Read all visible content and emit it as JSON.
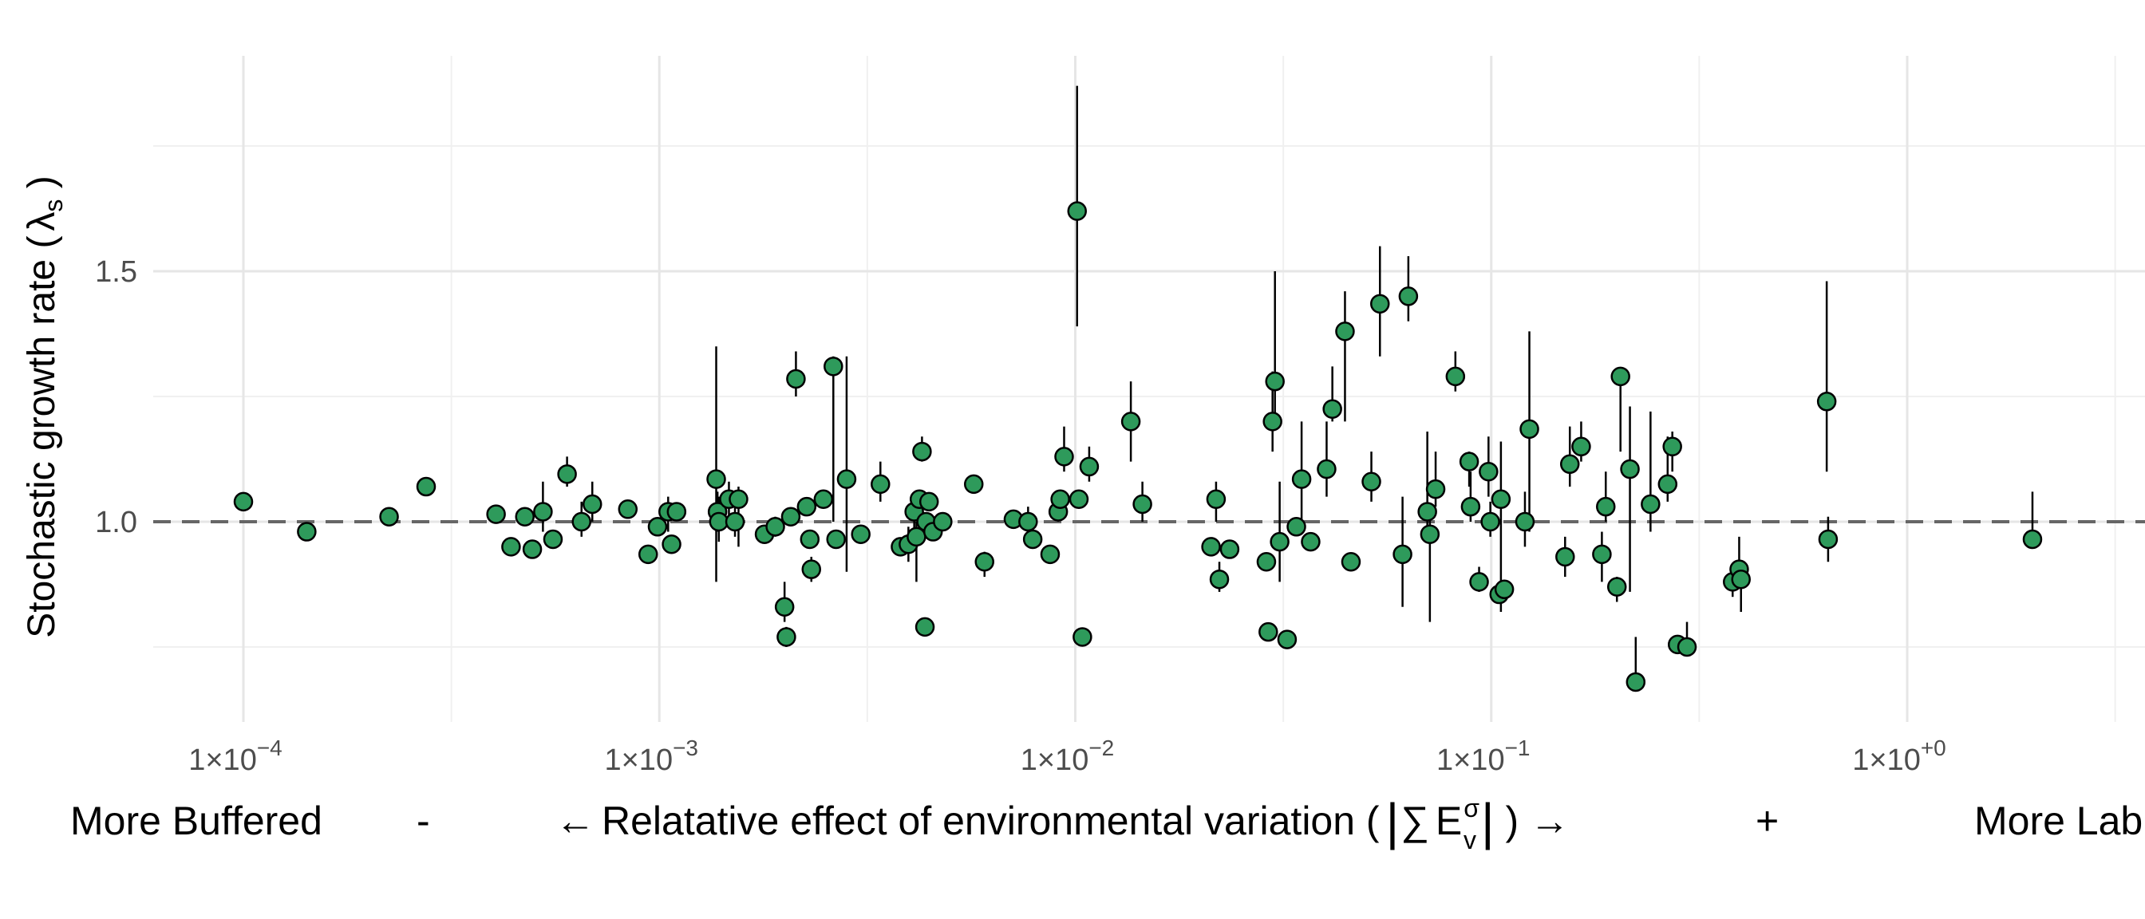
{
  "chart_data": {
    "type": "scatter",
    "x_scale": "log10",
    "xlim": [
      5e-05,
      4
    ],
    "ylim": [
      0.65,
      1.9
    ],
    "x_ticks": [
      {
        "value": 0.0001,
        "label": "1×10",
        "exp": "−4"
      },
      {
        "value": 0.001,
        "label": "1×10",
        "exp": "−3"
      },
      {
        "value": 0.01,
        "label": "1×10",
        "exp": "−2"
      },
      {
        "value": 0.1,
        "label": "1×10",
        "exp": "−1"
      },
      {
        "value": 1,
        "label": "1×10",
        "exp": "+0"
      }
    ],
    "y_ticks": [
      {
        "value": 1.0,
        "label": "1.0"
      },
      {
        "value": 1.5,
        "label": "1.5"
      }
    ],
    "y_minor": [
      0.75,
      1.25,
      1.75
    ],
    "reference_line": 1.0,
    "grid": true,
    "marker_color": "#2e9a5b",
    "ylabel": "Stochastic growth rate (",
    "ylabel_symbol": "λ",
    "ylabel_sub": "s",
    "ylabel_close": " )",
    "x_caption": {
      "left": "More Buffered",
      "minus": "-",
      "arrow_left": "←",
      "middle": "Relatative effect of environmental variation (",
      "bar_left": "|",
      "sum": "∑",
      "E": "E",
      "E_sup": "σ",
      "E_sub": "v",
      "bar_right": "|",
      "close": " )",
      "arrow_right": "→",
      "plus": "+",
      "right": "More Labile"
    },
    "points": [
      {
        "x": 0.0001,
        "y": 1.04
      },
      {
        "x": 0.000142,
        "y": 0.98
      },
      {
        "x": 0.000224,
        "y": 1.01
      },
      {
        "x": 0.000275,
        "y": 1.07
      },
      {
        "x": 0.000405,
        "y": 1.015
      },
      {
        "x": 0.00044,
        "y": 0.95
      },
      {
        "x": 0.000475,
        "y": 1.01
      },
      {
        "x": 0.000495,
        "y": 0.945
      },
      {
        "x": 0.000525,
        "y": 1.02,
        "lo": 0.98,
        "hi": 1.08
      },
      {
        "x": 0.000555,
        "y": 0.965
      },
      {
        "x": 0.0006,
        "y": 1.095,
        "lo": 1.07,
        "hi": 1.13
      },
      {
        "x": 0.00065,
        "y": 1.0,
        "lo": 0.97,
        "hi": 1.04
      },
      {
        "x": 0.00069,
        "y": 1.035,
        "lo": 1.0,
        "hi": 1.08
      },
      {
        "x": 0.00084,
        "y": 1.025
      },
      {
        "x": 0.00094,
        "y": 0.935
      },
      {
        "x": 0.00099,
        "y": 0.99
      },
      {
        "x": 0.00105,
        "y": 1.02,
        "lo": 0.98,
        "hi": 1.05
      },
      {
        "x": 0.00107,
        "y": 0.955
      },
      {
        "x": 0.0011,
        "y": 1.02
      },
      {
        "x": 0.00137,
        "y": 1.085,
        "lo": 0.88,
        "hi": 1.35
      },
      {
        "x": 0.00138,
        "y": 1.02,
        "lo": 0.98,
        "hi": 1.06
      },
      {
        "x": 0.00139,
        "y": 1.0,
        "lo": 0.96,
        "hi": 1.05
      },
      {
        "x": 0.00147,
        "y": 1.045,
        "lo": 1.0,
        "hi": 1.08
      },
      {
        "x": 0.00152,
        "y": 1.0,
        "lo": 0.97,
        "hi": 1.03
      },
      {
        "x": 0.00155,
        "y": 1.045,
        "lo": 0.95,
        "hi": 1.07
      },
      {
        "x": 0.00179,
        "y": 0.975
      },
      {
        "x": 0.0019,
        "y": 0.99,
        "lo": 0.97,
        "hi": 1.01
      },
      {
        "x": 0.002,
        "y": 0.83,
        "lo": 0.8,
        "hi": 0.88
      },
      {
        "x": 0.00202,
        "y": 0.77,
        "lo": 0.75,
        "hi": 0.79
      },
      {
        "x": 0.00207,
        "y": 1.01
      },
      {
        "x": 0.00213,
        "y": 1.285,
        "lo": 1.25,
        "hi": 1.34
      },
      {
        "x": 0.00226,
        "y": 1.03
      },
      {
        "x": 0.0023,
        "y": 0.965
      },
      {
        "x": 0.00232,
        "y": 0.905,
        "lo": 0.88,
        "hi": 0.93
      },
      {
        "x": 0.00248,
        "y": 1.045
      },
      {
        "x": 0.00262,
        "y": 1.31,
        "lo": 1.0,
        "hi": 1.33
      },
      {
        "x": 0.00266,
        "y": 0.965
      },
      {
        "x": 0.00282,
        "y": 1.085,
        "lo": 0.9,
        "hi": 1.33
      },
      {
        "x": 0.00305,
        "y": 0.975
      },
      {
        "x": 0.0034,
        "y": 1.075,
        "lo": 1.04,
        "hi": 1.12
      },
      {
        "x": 0.0038,
        "y": 0.95
      },
      {
        "x": 0.00397,
        "y": 0.955,
        "lo": 0.92,
        "hi": 0.99
      },
      {
        "x": 0.0041,
        "y": 1.02,
        "lo": 0.95,
        "hi": 1.04
      },
      {
        "x": 0.00415,
        "y": 0.97,
        "lo": 0.88,
        "hi": 1.0
      },
      {
        "x": 0.00422,
        "y": 1.045
      },
      {
        "x": 0.00428,
        "y": 1.14,
        "lo": 1.12,
        "hi": 1.17
      },
      {
        "x": 0.00435,
        "y": 0.79
      },
      {
        "x": 0.00438,
        "y": 1.0
      },
      {
        "x": 0.00445,
        "y": 1.04
      },
      {
        "x": 0.00455,
        "y": 0.98
      },
      {
        "x": 0.0048,
        "y": 1.0
      },
      {
        "x": 0.0057,
        "y": 1.075
      },
      {
        "x": 0.00605,
        "y": 0.92,
        "lo": 0.89,
        "hi": 0.94
      },
      {
        "x": 0.0071,
        "y": 1.005
      },
      {
        "x": 0.0077,
        "y": 1.0,
        "lo": 0.97,
        "hi": 1.03
      },
      {
        "x": 0.0079,
        "y": 0.965
      },
      {
        "x": 0.0087,
        "y": 0.935
      },
      {
        "x": 0.0091,
        "y": 1.02,
        "lo": 1.0,
        "hi": 1.06
      },
      {
        "x": 0.0092,
        "y": 1.045
      },
      {
        "x": 0.0094,
        "y": 1.13,
        "lo": 1.1,
        "hi": 1.19
      },
      {
        "x": 0.0101,
        "y": 1.62,
        "lo": 1.39,
        "hi": 1.87
      },
      {
        "x": 0.0102,
        "y": 1.045
      },
      {
        "x": 0.0104,
        "y": 0.77
      },
      {
        "x": 0.0108,
        "y": 1.11,
        "lo": 1.08,
        "hi": 1.15
      },
      {
        "x": 0.0136,
        "y": 1.2,
        "lo": 1.12,
        "hi": 1.28
      },
      {
        "x": 0.0145,
        "y": 1.035,
        "lo": 1.0,
        "hi": 1.08
      },
      {
        "x": 0.0212,
        "y": 0.95
      },
      {
        "x": 0.0218,
        "y": 1.045,
        "lo": 1.0,
        "hi": 1.08
      },
      {
        "x": 0.0222,
        "y": 0.885,
        "lo": 0.86,
        "hi": 0.92
      },
      {
        "x": 0.0235,
        "y": 0.945
      },
      {
        "x": 0.0288,
        "y": 0.92
      },
      {
        "x": 0.0291,
        "y": 0.78
      },
      {
        "x": 0.0298,
        "y": 1.2,
        "lo": 1.14,
        "hi": 1.3
      },
      {
        "x": 0.0302,
        "y": 1.28,
        "lo": 1.2,
        "hi": 1.5
      },
      {
        "x": 0.031,
        "y": 0.96,
        "lo": 0.88,
        "hi": 1.08
      },
      {
        "x": 0.0323,
        "y": 0.765
      },
      {
        "x": 0.034,
        "y": 0.99
      },
      {
        "x": 0.035,
        "y": 1.085,
        "lo": 1.0,
        "hi": 1.2
      },
      {
        "x": 0.0368,
        "y": 0.96
      },
      {
        "x": 0.0402,
        "y": 1.105,
        "lo": 1.05,
        "hi": 1.2
      },
      {
        "x": 0.0415,
        "y": 1.225,
        "lo": 1.2,
        "hi": 1.31
      },
      {
        "x": 0.0445,
        "y": 1.38,
        "lo": 1.2,
        "hi": 1.46
      },
      {
        "x": 0.046,
        "y": 0.92
      },
      {
        "x": 0.0515,
        "y": 1.08,
        "lo": 1.04,
        "hi": 1.14
      },
      {
        "x": 0.054,
        "y": 1.435,
        "lo": 1.33,
        "hi": 1.55
      },
      {
        "x": 0.0612,
        "y": 0.935,
        "lo": 0.83,
        "hi": 1.05
      },
      {
        "x": 0.0632,
        "y": 1.45,
        "lo": 1.4,
        "hi": 1.53
      },
      {
        "x": 0.0702,
        "y": 1.02,
        "lo": 0.98,
        "hi": 1.18
      },
      {
        "x": 0.0712,
        "y": 0.975,
        "lo": 0.8,
        "hi": 1.02
      },
      {
        "x": 0.0735,
        "y": 1.065,
        "lo": 1.03,
        "hi": 1.14
      },
      {
        "x": 0.082,
        "y": 1.29,
        "lo": 1.26,
        "hi": 1.34
      },
      {
        "x": 0.0885,
        "y": 1.12,
        "lo": 1.07,
        "hi": 1.14
      },
      {
        "x": 0.0892,
        "y": 1.03,
        "lo": 1.0,
        "hi": 1.1
      },
      {
        "x": 0.0935,
        "y": 0.88,
        "lo": 0.86,
        "hi": 0.91
      },
      {
        "x": 0.0985,
        "y": 1.1,
        "lo": 1.05,
        "hi": 1.17
      },
      {
        "x": 0.0995,
        "y": 1.0,
        "lo": 0.97,
        "hi": 1.04
      },
      {
        "x": 0.1045,
        "y": 0.855,
        "lo": 0.84,
        "hi": 0.87
      },
      {
        "x": 0.1055,
        "y": 1.045,
        "lo": 0.82,
        "hi": 1.16
      },
      {
        "x": 0.1075,
        "y": 0.865,
        "lo": 0.85,
        "hi": 0.88
      },
      {
        "x": 0.1205,
        "y": 1.0,
        "lo": 0.95,
        "hi": 1.06
      },
      {
        "x": 0.1235,
        "y": 1.185,
        "lo": 0.98,
        "hi": 1.38
      },
      {
        "x": 0.1505,
        "y": 0.93,
        "lo": 0.89,
        "hi": 0.97
      },
      {
        "x": 0.1545,
        "y": 1.115,
        "lo": 1.07,
        "hi": 1.19
      },
      {
        "x": 0.1645,
        "y": 1.15,
        "lo": 1.12,
        "hi": 1.2
      },
      {
        "x": 0.1845,
        "y": 0.935,
        "lo": 0.88,
        "hi": 0.98
      },
      {
        "x": 0.1885,
        "y": 1.03,
        "lo": 1.0,
        "hi": 1.1
      },
      {
        "x": 0.2005,
        "y": 0.87,
        "lo": 0.84,
        "hi": 0.89
      },
      {
        "x": 0.2045,
        "y": 1.29,
        "lo": 1.14,
        "hi": 1.3
      },
      {
        "x": 0.2155,
        "y": 1.105,
        "lo": 0.86,
        "hi": 1.23
      },
      {
        "x": 0.2225,
        "y": 0.68,
        "lo": 0.67,
        "hi": 0.77
      },
      {
        "x": 0.2415,
        "y": 1.035,
        "lo": 0.98,
        "hi": 1.22
      },
      {
        "x": 0.2655,
        "y": 1.075,
        "lo": 1.04,
        "hi": 1.17
      },
      {
        "x": 0.2725,
        "y": 1.15,
        "lo": 1.1,
        "hi": 1.18
      },
      {
        "x": 0.2805,
        "y": 0.755
      },
      {
        "x": 0.2955,
        "y": 0.75,
        "lo": 0.74,
        "hi": 0.8
      },
      {
        "x": 0.3805,
        "y": 0.88,
        "lo": 0.85,
        "hi": 0.91
      },
      {
        "x": 0.3945,
        "y": 0.905,
        "lo": 0.89,
        "hi": 0.97
      },
      {
        "x": 0.3985,
        "y": 0.885,
        "lo": 0.82,
        "hi": 0.92
      },
      {
        "x": 0.6405,
        "y": 1.24,
        "lo": 1.1,
        "hi": 1.48
      },
      {
        "x": 0.6455,
        "y": 0.965,
        "lo": 0.92,
        "hi": 1.01
      },
      {
        "x": 2.0005,
        "y": 0.965,
        "lo": 0.95,
        "hi": 1.06
      }
    ]
  }
}
